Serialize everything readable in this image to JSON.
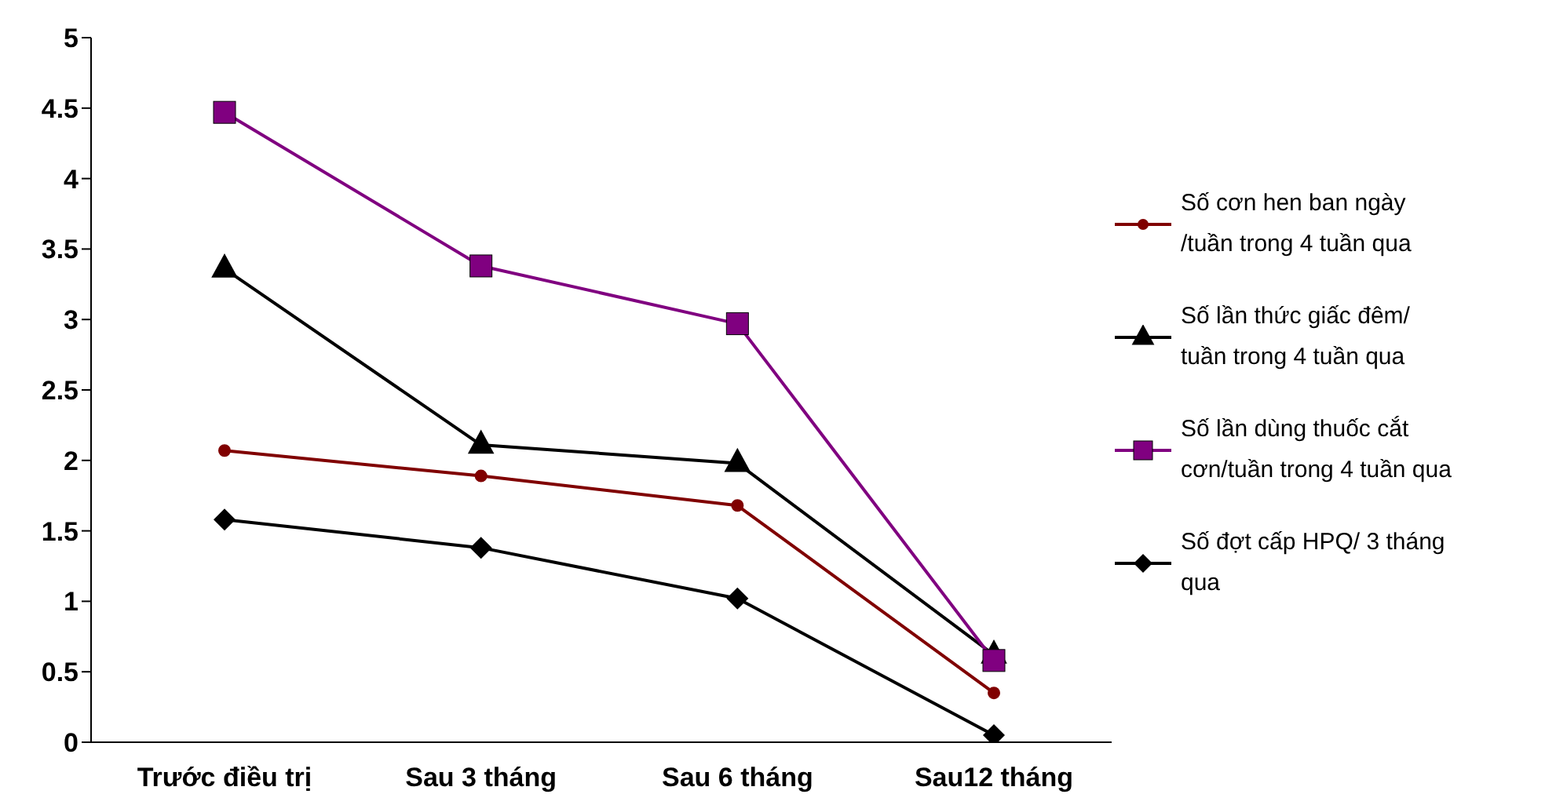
{
  "chart_data": {
    "type": "line",
    "categories": [
      "Trước điều trị",
      "Sau 3 tháng",
      "Sau 6 tháng",
      "Sau12 tháng"
    ],
    "series": [
      {
        "name": "Số cơn hen ban ngày\n/tuần trong 4 tuần qua",
        "color": "#800000",
        "marker": "circle",
        "values": [
          2.07,
          1.89,
          1.68,
          0.35
        ]
      },
      {
        "name": "Số lần thức giấc đêm/\ntuần trong 4 tuần qua",
        "color": "#000000",
        "marker": "triangle",
        "values": [
          3.36,
          2.11,
          1.98,
          0.62
        ]
      },
      {
        "name": "Số lần dùng thuốc cắt\ncơn/tuần trong 4 tuần qua",
        "color": "#800080",
        "marker": "square",
        "values": [
          4.47,
          3.38,
          2.97,
          0.58
        ]
      },
      {
        "name": "Số đợt cấp HPQ/ 3 tháng\nqua",
        "color": "#000000",
        "marker": "diamond",
        "values": [
          1.58,
          1.38,
          1.02,
          0.05
        ]
      }
    ],
    "ylim": [
      0,
      5
    ],
    "yticks": [
      0,
      0.5,
      1,
      1.5,
      2,
      2.5,
      3,
      3.5,
      4,
      4.5,
      5
    ],
    "grid": false,
    "legend": "right"
  }
}
